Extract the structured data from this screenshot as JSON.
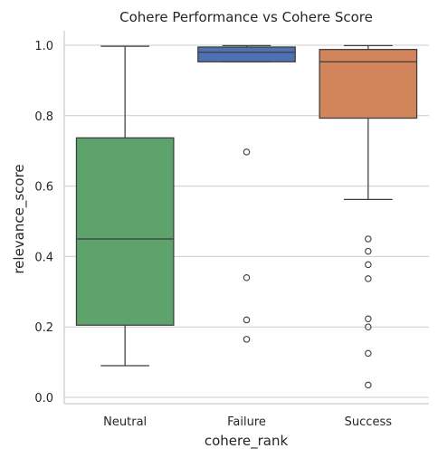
{
  "chart_data": {
    "type": "box",
    "title": "Cohere Performance vs Cohere Score",
    "xlabel": "cohere_rank",
    "ylabel": "relevance_score",
    "ylim": [
      -0.01,
      1.05
    ],
    "yticks": [
      "0.0",
      "0.2",
      "0.4",
      "0.6",
      "0.8",
      "1.0"
    ],
    "grid": "horizontal",
    "categories": [
      "Neutral",
      "Failure",
      "Success"
    ],
    "boxes": [
      {
        "category": "Neutral",
        "color": "#5ea26c",
        "whisker_low": 0.09,
        "q1": 0.205,
        "median": 0.45,
        "q3": 0.737,
        "whisker_high": 0.997,
        "fliers": []
      },
      {
        "category": "Failure",
        "color": "#4e72b4",
        "whisker_low": 0.953,
        "q1": 0.953,
        "median": 0.98,
        "q3": 0.995,
        "whisker_high": 0.999,
        "fliers": [
          0.697,
          0.34,
          0.22,
          0.165
        ]
      },
      {
        "category": "Success",
        "color": "#d2845b",
        "whisker_low": 0.562,
        "q1": 0.793,
        "median": 0.953,
        "q3": 0.988,
        "whisker_high": 0.999,
        "fliers": [
          0.45,
          0.415,
          0.377,
          0.337,
          0.223,
          0.2,
          0.125,
          0.035
        ]
      }
    ]
  }
}
